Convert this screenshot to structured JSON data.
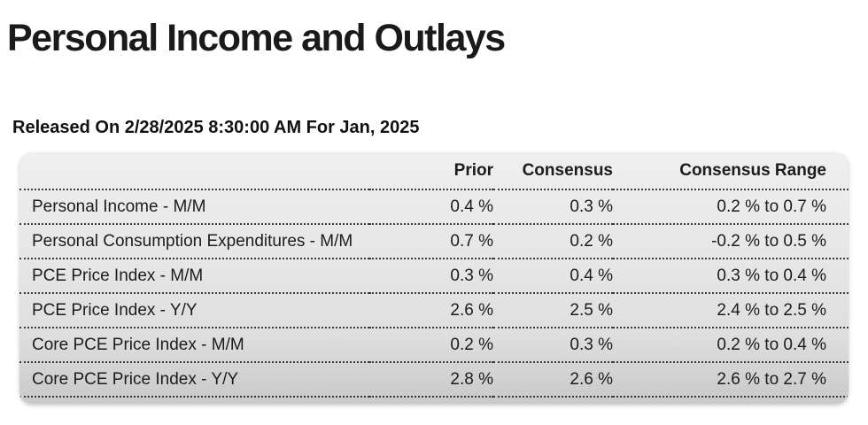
{
  "header": {
    "title": "Personal Income and Outlays",
    "release_line": "Released On 2/28/2025 8:30:00 AM For Jan, 2025"
  },
  "table": {
    "columns": [
      "",
      "Prior",
      "Consensus",
      "Consensus Range"
    ],
    "rows": [
      {
        "label": "Personal Income - M/M",
        "prior": "0.4 %",
        "consensus": "0.3 %",
        "consensus_range": "0.2 % to 0.7 %"
      },
      {
        "label": "Personal Consumption Expenditures - M/M",
        "prior": "0.7 %",
        "consensus": "0.2 %",
        "consensus_range": "-0.2 % to 0.5 %"
      },
      {
        "label": "PCE Price Index - M/M",
        "prior": "0.3 %",
        "consensus": "0.4 %",
        "consensus_range": "0.3 % to 0.4 %"
      },
      {
        "label": "PCE Price Index - Y/Y",
        "prior": "2.6 %",
        "consensus": "2.5 %",
        "consensus_range": "2.4 % to 2.5 %"
      },
      {
        "label": "Core PCE Price Index - M/M",
        "prior": "0.2 %",
        "consensus": "0.3 %",
        "consensus_range": "0.2 % to 0.4 %"
      },
      {
        "label": "Core PCE Price Index - Y/Y",
        "prior": "2.8 %",
        "consensus": "2.6 %",
        "consensus_range": "2.6 % to 2.7 %"
      }
    ]
  },
  "colors": {
    "text": "#181818",
    "card_gradient_top": "#efefef",
    "card_gradient_bottom": "#c9c9c9",
    "divider_dots": "#3a3a3a",
    "page_background": "#ffffff"
  }
}
